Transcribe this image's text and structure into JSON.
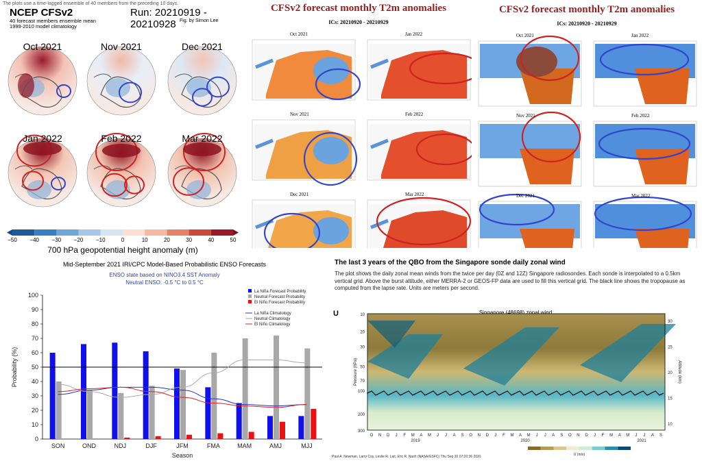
{
  "top_left": {
    "note": "The plots use a time-lagged ensemble of 40 members from the preceding 10 days.",
    "title": "NCEP CFSv2",
    "run": "Run: 20210919 - 20210928",
    "subtitle1": "40 forecast members ensemble mean",
    "subtitle2": "1999-2010 model climatology",
    "fig_by": "Fig. by Simon Lee",
    "months": [
      "Oct 2021",
      "Nov 2021",
      "Dec 2021",
      "Jan 2022",
      "Feb 2022",
      "Mar 2022"
    ],
    "colorbar_label": "700 hPa geopotential height anomaly (m)",
    "colorbar_ticks": [
      "−50",
      "−40",
      "−30",
      "−20",
      "−10",
      "0",
      "10",
      "20",
      "30",
      "40",
      "50"
    ]
  },
  "top_middle": {
    "title": "CFSv2 forecast monthly T2m anomalies",
    "ics": "ICs: 20210920 - 20210929",
    "maps": [
      "Oct 2021",
      "Jan 2022",
      "Nov 2021",
      "Feb 2022",
      "Dec 2021",
      "Mar 2022"
    ]
  },
  "top_right": {
    "title": "CFSv2 forecast monthly T2m anomalies",
    "ics": "ICs: 20210920 - 20210929",
    "maps": [
      "Oct 2021",
      "Jan 2022",
      "Nov 2021",
      "Feb 2022",
      "Dec 2021",
      "Mar 2022"
    ]
  },
  "enso": {
    "title": "Mid-September 2021 IRI/CPC Model-Based Probabilistic ENSO Forecasts",
    "sub1": "ENSO state based on NINO3.4 SST Anomaly",
    "sub2": "Neutral ENSO: -0.5 °C to 0.5 °C"
  },
  "qbo": {
    "heading": "The last 3 years of the QBO from the Singapore sonde daily zonal wind",
    "description": "The plot shows the daily zonal mean winds from the twice per day (0Z and 12Z) Singapore radiosondes. Each sonde is interpolated to a 0.5km vertical grid. Above the burst altitude, either MERRA-2 or GEOS-FP data are used to fill this vertical grid. The black line shows the tropopause as computed from the lapse rate. Units are meters per second.",
    "chart_title": "Singapore (48698) zonal wind",
    "panel_letter": "U",
    "ylabel_left": "Pressure (hPa)",
    "ylabel_right": "Altitude (km)",
    "pressure_ticks": [
      "10",
      "20",
      "30",
      "50",
      "70",
      "100",
      "200",
      "300"
    ],
    "altitude_ticks": [
      "30",
      "25",
      "20",
      "15",
      "10"
    ],
    "month_letters": "O N D J F M A M J J A S O N D J F M A M J J A S O N D J F M A M J J A S",
    "years": [
      "2019",
      "2020",
      "2021"
    ],
    "credit": "Paul A. Newman, Larry Coy, Leslie R. Lait, Eric R. Nash (NASA/GSFC) Thu Sep 30 07:20:36 2021",
    "units": "U (m/s)"
  },
  "chart_data": {
    "type": "bar",
    "categories": [
      "SON",
      "OND",
      "NDJ",
      "DJF",
      "JFM",
      "FMA",
      "MAM",
      "AMJ",
      "MJJ"
    ],
    "xlabel": "Season",
    "ylabel": "Probability (%)",
    "ylim": [
      0,
      100
    ],
    "yticks": [
      0,
      10,
      20,
      30,
      40,
      50,
      60,
      70,
      80,
      90,
      100
    ],
    "grid": false,
    "legend_position": "top-right",
    "series": [
      {
        "name": "La Niña Forecast Probability",
        "color": "#1010ee",
        "values": [
          60,
          66,
          67,
          61,
          49,
          36,
          25,
          16,
          16
        ]
      },
      {
        "name": "Neutral Forecast Probability",
        "color": "#a8a8a8",
        "values": [
          40,
          34,
          32,
          37,
          48,
          60,
          70,
          72,
          63
        ]
      },
      {
        "name": "El Niño Forecast Probability",
        "color": "#ee1010",
        "values": [
          0,
          0,
          1,
          2,
          3,
          4,
          5,
          12,
          21
        ]
      }
    ],
    "lines": [
      {
        "name": "La Niña Climatology",
        "color": "#2233cc",
        "values": [
          31,
          34,
          36,
          36,
          34,
          28,
          24,
          23,
          24
        ]
      },
      {
        "name": "Neutral Climatology",
        "color": "#aaaaaa",
        "values": [
          38,
          33,
          29,
          31,
          36,
          46,
          55,
          55,
          53
        ]
      },
      {
        "name": "El Niño Climatology",
        "color": "#dd2222",
        "values": [
          33,
          35,
          36,
          33,
          29,
          25,
          23,
          22,
          24
        ]
      }
    ],
    "reference_line": 50
  }
}
